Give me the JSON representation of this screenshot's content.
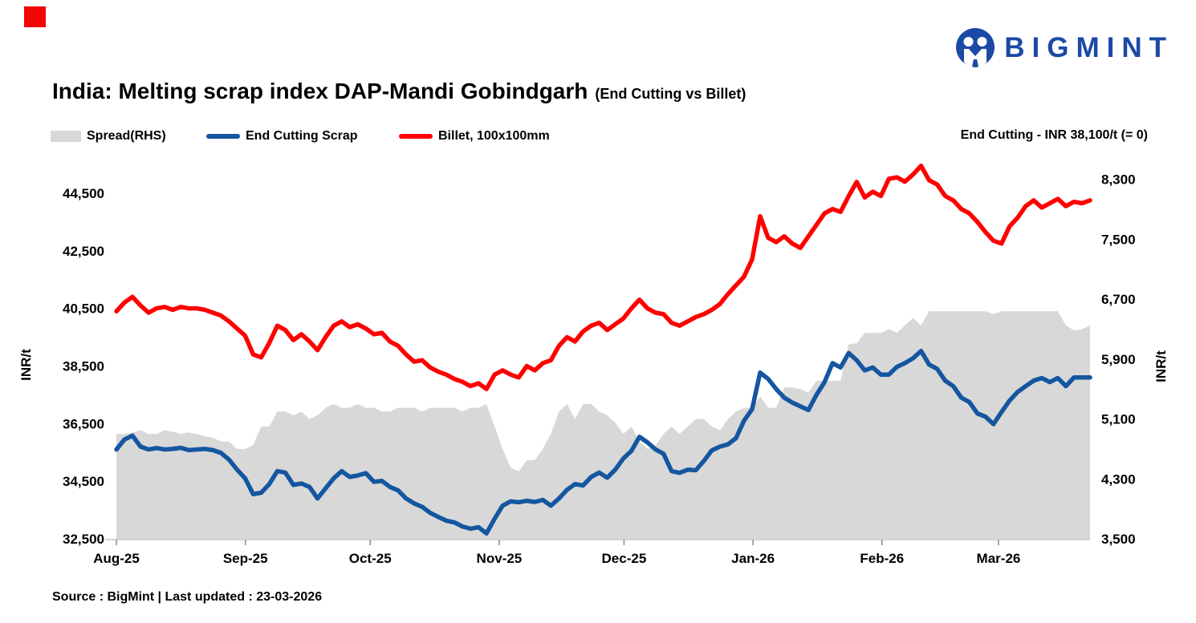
{
  "page": {
    "accent_square_color": "#F20505"
  },
  "logo": {
    "text": "BIGMINT",
    "color": "#1C49A4"
  },
  "title": {
    "main": "India: Melting scrap index DAP-Mandi Gobindgarh",
    "suffix": "(End Cutting vs Billet)"
  },
  "legend": [
    {
      "label": "Spread(RHS)",
      "type": "area",
      "color": "#D8D8D8"
    },
    {
      "label": "End Cutting Scrap",
      "type": "line",
      "color": "#1456A0"
    },
    {
      "label": "Billet, 100x100mm",
      "type": "line",
      "color": "#FF0000"
    }
  ],
  "annotation": "End Cutting - INR 38,100/t (= 0)",
  "footer": "Source : BigMint | Last updated : 23-03-2026",
  "chart_data": {
    "type": "line+area",
    "title": "India: Melting scrap index DAP-Mandi Gobindgarh (End Cutting vs Billet)",
    "left_axis": {
      "label": "INR/t",
      "min": 32500,
      "max": 45500,
      "ticks": [
        32500,
        34500,
        36500,
        38500,
        40500,
        42500,
        44500
      ],
      "tick_labels": [
        "32,500",
        "34,500",
        "36,500",
        "38,500",
        "40,500",
        "42,500",
        "44,500"
      ]
    },
    "right_axis": {
      "label": "INR/t",
      "min": 3500,
      "max": 8500,
      "ticks": [
        3500,
        4300,
        5100,
        5900,
        6700,
        7500,
        8300
      ],
      "tick_labels": [
        "3,500",
        "4,300",
        "5,100",
        "5,900",
        "6,700",
        "7,500",
        "8,300"
      ]
    },
    "x_axis": {
      "tick_labels": [
        "Aug-25",
        "Sep-25",
        "Oct-25",
        "Nov-25",
        "Dec-25",
        "Jan-26",
        "Feb-26",
        "Mar-26"
      ],
      "tick_day_offsets": [
        0,
        31,
        61,
        92,
        122,
        153,
        184,
        212
      ],
      "total_days": 234
    },
    "series": [
      {
        "name": "Spread(RHS)",
        "axis": "right",
        "style": "area",
        "color": "#D8D8D8",
        "values": [
          4900,
          4900,
          4920,
          4950,
          4900,
          4900,
          4950,
          4930,
          4900,
          4920,
          4900,
          4870,
          4850,
          4800,
          4800,
          4700,
          4700,
          4750,
          5000,
          5000,
          5200,
          5200,
          5150,
          5200,
          5100,
          5150,
          5250,
          5300,
          5250,
          5250,
          5300,
          5250,
          5250,
          5200,
          5200,
          5250,
          5250,
          5250,
          5200,
          5250,
          5250,
          5250,
          5250,
          5200,
          5250,
          5250,
          5300,
          5000,
          4700,
          4450,
          4400,
          4550,
          4550,
          4700,
          4900,
          5200,
          5300,
          5100,
          5300,
          5300,
          5200,
          5150,
          5050,
          4900,
          5000,
          4800,
          4700,
          4750,
          4900,
          5000,
          4900,
          5000,
          5100,
          5100,
          5000,
          4950,
          5100,
          5200,
          5250,
          5250,
          5400,
          5250,
          5250,
          5520,
          5520,
          5500,
          5450,
          5610,
          5610,
          5610,
          5610,
          6100,
          6110,
          6250,
          6250,
          6250,
          6300,
          6250,
          6350,
          6450,
          6350,
          6540,
          6540,
          6540,
          6540,
          6540,
          6540,
          6540,
          6540,
          6500,
          6540,
          6540,
          6540,
          6540,
          6540,
          6540,
          6540,
          6540,
          6350,
          6280,
          6300,
          6350
        ]
      },
      {
        "name": "End Cutting Scrap",
        "axis": "left",
        "style": "line",
        "color": "#1456A0",
        "values": [
          35600,
          35950,
          36080,
          35700,
          35600,
          35650,
          35600,
          35620,
          35660,
          35580,
          35600,
          35620,
          35580,
          35480,
          35250,
          34900,
          34600,
          34050,
          34100,
          34400,
          34850,
          34800,
          34370,
          34420,
          34300,
          33900,
          34250,
          34600,
          34850,
          34650,
          34700,
          34780,
          34480,
          34510,
          34300,
          34180,
          33900,
          33730,
          33610,
          33400,
          33260,
          33130,
          33070,
          32930,
          32850,
          32900,
          32690,
          33200,
          33650,
          33800,
          33770,
          33820,
          33780,
          33850,
          33650,
          33900,
          34200,
          34400,
          34350,
          34650,
          34800,
          34620,
          34900,
          35290,
          35550,
          36040,
          35850,
          35600,
          35450,
          34850,
          34790,
          34900,
          34880,
          35200,
          35570,
          35700,
          35780,
          35990,
          36600,
          37000,
          38270,
          38050,
          37700,
          37400,
          37230,
          37100,
          36970,
          37500,
          37940,
          38600,
          38450,
          38950,
          38700,
          38350,
          38450,
          38200,
          38200,
          38470,
          38600,
          38770,
          39020,
          38550,
          38400,
          37990,
          37800,
          37400,
          37250,
          36850,
          36740,
          36480,
          36900,
          37300,
          37600,
          37800,
          37990,
          38080,
          37940,
          38080,
          37800,
          38100,
          38100,
          38100
        ]
      },
      {
        "name": "Billet, 100x100mm",
        "axis": "left",
        "style": "line",
        "color": "#FF0000",
        "values": [
          40400,
          40700,
          40900,
          40600,
          40350,
          40500,
          40550,
          40450,
          40550,
          40500,
          40500,
          40450,
          40350,
          40250,
          40050,
          39800,
          39550,
          38900,
          38800,
          39300,
          39900,
          39750,
          39400,
          39600,
          39350,
          39050,
          39500,
          39900,
          40050,
          39850,
          39950,
          39800,
          39600,
          39650,
          39350,
          39200,
          38900,
          38650,
          38700,
          38450,
          38300,
          38200,
          38050,
          37950,
          37800,
          37900,
          37700,
          38200,
          38350,
          38200,
          38100,
          38500,
          38350,
          38600,
          38700,
          39200,
          39500,
          39350,
          39700,
          39900,
          40000,
          39750,
          39950,
          40150,
          40500,
          40800,
          40500,
          40350,
          40300,
          40000,
          39900,
          40050,
          40200,
          40300,
          40450,
          40650,
          41000,
          41300,
          41600,
          42200,
          43700,
          42950,
          42800,
          43000,
          42750,
          42600,
          43000,
          43400,
          43800,
          43950,
          43850,
          44400,
          44890,
          44350,
          44550,
          44400,
          45000,
          45050,
          44900,
          45150,
          45450,
          44950,
          44800,
          44400,
          44250,
          43950,
          43800,
          43500,
          43150,
          42850,
          42750,
          43350,
          43650,
          44050,
          44250,
          44000,
          44150,
          44300,
          44050,
          44200,
          44150,
          44250
        ]
      }
    ]
  }
}
